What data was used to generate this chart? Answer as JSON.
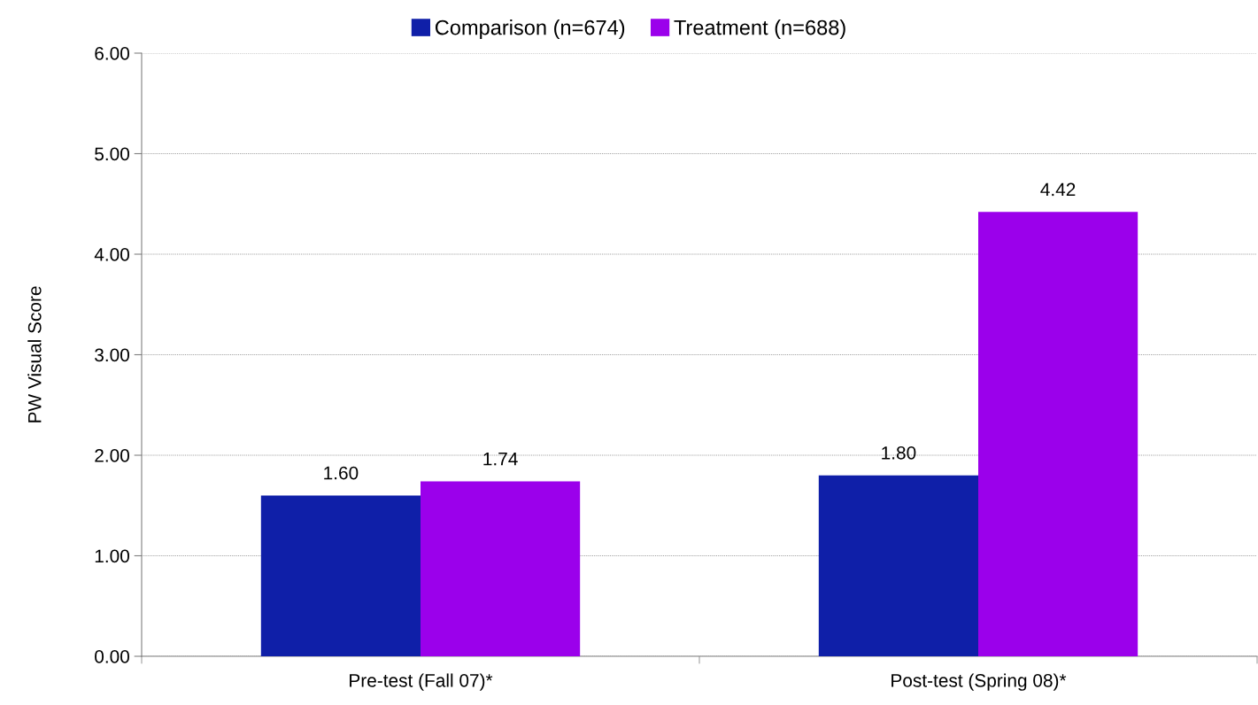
{
  "chart_data": {
    "type": "bar",
    "ylabel": "PW Visual Score",
    "categories": [
      "Pre-test (Fall 07)*",
      "Post-test (Spring 08)*"
    ],
    "series": [
      {
        "name": "Comparison (n=674)",
        "color": "#0f1fa8",
        "values": [
          1.6,
          1.8
        ],
        "value_labels": [
          "1.60",
          "1.80"
        ]
      },
      {
        "name": "Treatment (n=688)",
        "color": "#9b00eb",
        "values": [
          1.74,
          4.42
        ],
        "value_labels": [
          "1.74",
          "4.42"
        ]
      }
    ],
    "ylim": [
      0,
      6
    ],
    "yticks": [
      {
        "value": 0,
        "label": "0.00"
      },
      {
        "value": 1,
        "label": "1.00"
      },
      {
        "value": 2,
        "label": "2.00"
      },
      {
        "value": 3,
        "label": "3.00"
      },
      {
        "value": 4,
        "label": "4.00"
      },
      {
        "value": 5,
        "label": "5.00"
      },
      {
        "value": 6,
        "label": "6.00"
      }
    ],
    "grid": "y",
    "legend": "top"
  }
}
